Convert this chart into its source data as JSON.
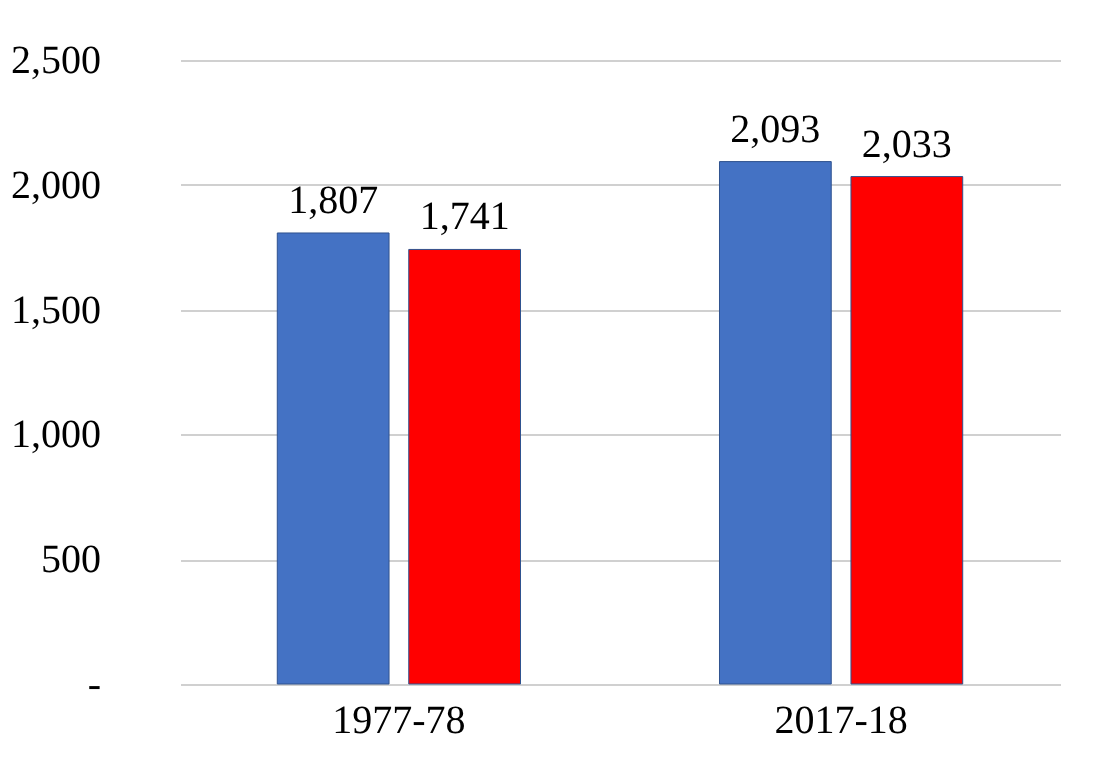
{
  "chart_data": {
    "type": "bar",
    "categories": [
      "1977-78",
      "2017-18"
    ],
    "series": [
      {
        "color": "#4472c4",
        "values": [
          1807,
          2093
        ],
        "value_labels": [
          "1,807",
          "2,093"
        ]
      },
      {
        "color": "#ff0000",
        "values": [
          1741,
          2033
        ],
        "value_labels": [
          "1,741",
          "2,033"
        ]
      }
    ],
    "ylim": [
      0,
      2500
    ],
    "yticks": [
      {
        "value": 0,
        "label": "-"
      },
      {
        "value": 500,
        "label": "500"
      },
      {
        "value": 1000,
        "label": "1,000"
      },
      {
        "value": 1500,
        "label": "1,500"
      },
      {
        "value": 2000,
        "label": "2,000"
      },
      {
        "value": 2500,
        "label": "2,500"
      }
    ],
    "grid": "y"
  }
}
